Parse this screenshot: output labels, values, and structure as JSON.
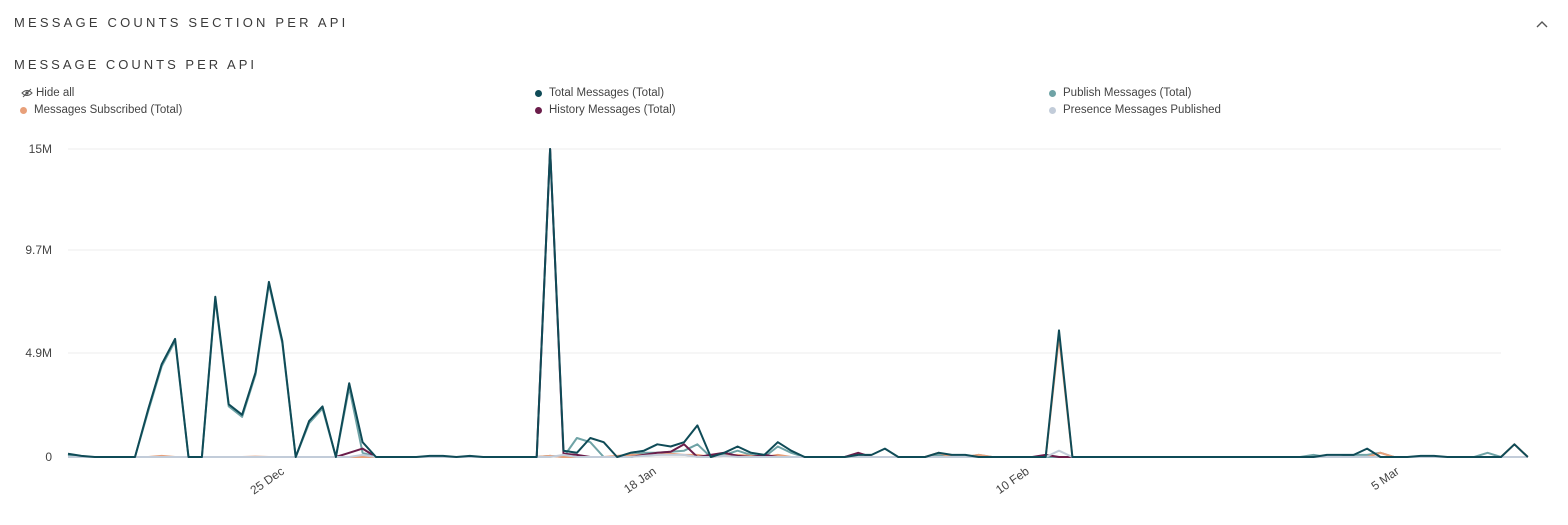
{
  "section": {
    "title": "MESSAGE COUNTS SECTION PER API",
    "collapse_icon": "chevron-up-icon"
  },
  "legend": {
    "hide_all_label": "Hide all",
    "hide_all_icon": "eye-slash-icon"
  },
  "colors": {
    "total": "#0f4b57",
    "publish": "#6fa3a6",
    "subscribed": "#e8a07a",
    "history": "#6b1d4a",
    "presence": "#c2ccd9",
    "grid": "#ececec"
  },
  "chart_data": {
    "type": "line",
    "title": "MESSAGE COUNTS PER API",
    "x_ticks": [
      "25 Dec",
      "18 Jan",
      "10 Feb",
      "5 Mar"
    ],
    "y_ticks": [
      "0",
      "4.9M",
      "9.7M",
      "15M"
    ],
    "ylim": [
      0,
      14600000
    ],
    "grid": true,
    "legend_position": "top",
    "series": [
      {
        "name": "Publish Messages (Total)",
        "color_key": "publish",
        "values": [
          0.1,
          0,
          0,
          0,
          0,
          0,
          2.2,
          4.3,
          5.5,
          0,
          0,
          7.5,
          2.4,
          1.9,
          3.9,
          8.2,
          5.4,
          0,
          1.6,
          2.3,
          0,
          3.3,
          0.2,
          0,
          0,
          0,
          0,
          0,
          0,
          0,
          0,
          0,
          0,
          0,
          0,
          0,
          0.05,
          0,
          0.9,
          0.7,
          0,
          0,
          0.1,
          0.2,
          0.2,
          0.25,
          0.3,
          0.6,
          0,
          0.1,
          0.3,
          0.1,
          0,
          0.5,
          0.2,
          0,
          0,
          0,
          0,
          0,
          0,
          0,
          0,
          0,
          0,
          0.1,
          0,
          0,
          0.1,
          0,
          0,
          0,
          0,
          0,
          0,
          0,
          0,
          0,
          0,
          0,
          0,
          0,
          0,
          0,
          0,
          0,
          0,
          0,
          0,
          0,
          0,
          0,
          0,
          0.1,
          0,
          0,
          0.1,
          0.1,
          0.2,
          0,
          0,
          0,
          0,
          0,
          0,
          0,
          0.2,
          0
        ]
      },
      {
        "name": "Messages Subscribed (Total)",
        "color_key": "subscribed",
        "values": [
          0,
          0,
          0,
          0,
          0,
          0,
          0,
          0.05,
          0,
          0,
          0,
          0,
          0,
          0,
          0.02,
          0,
          0,
          0,
          0,
          0,
          0,
          0,
          0,
          0,
          0,
          0,
          0,
          0,
          0,
          0,
          0,
          0,
          0,
          0,
          0,
          0,
          0.05,
          0,
          0,
          0,
          0,
          0.05,
          0.1,
          0.1,
          0.1,
          0.15,
          0.1,
          0.1,
          0,
          0.05,
          0.1,
          0.05,
          0,
          0.1,
          0,
          0,
          0,
          0,
          0,
          0,
          0,
          0,
          0,
          0,
          0,
          0.2,
          0,
          0,
          0.1,
          0,
          0,
          0,
          0,
          0,
          5.7,
          0,
          0,
          0,
          0,
          0,
          0,
          0,
          0,
          0,
          0,
          0,
          0,
          0,
          0,
          0,
          0,
          0,
          0,
          0,
          0,
          0,
          0,
          0,
          0.2,
          0,
          0,
          0,
          0,
          0,
          0,
          0,
          0,
          0,
          0.6,
          0
        ]
      },
      {
        "name": "History Messages (Total)",
        "color_key": "history",
        "values": [
          0,
          0,
          0,
          0,
          0,
          0,
          0,
          0,
          0,
          0,
          0,
          0,
          0,
          0,
          0,
          0,
          0,
          0,
          0,
          0,
          0,
          0.2,
          0.4,
          0,
          0,
          0,
          0,
          0,
          0,
          0,
          0,
          0,
          0,
          0,
          0,
          0,
          14.6,
          0.15,
          0.1,
          0,
          0,
          0,
          0,
          0.1,
          0.2,
          0.25,
          0.6,
          0,
          0.1,
          0.2,
          0.05,
          0,
          0.1,
          0,
          0,
          0,
          0,
          0,
          0,
          0.2,
          0,
          0,
          0,
          0,
          0,
          0,
          0,
          0,
          0,
          0,
          0,
          0,
          0,
          0.1,
          0,
          0,
          0,
          0,
          0,
          0,
          0,
          0,
          0,
          0,
          0,
          0,
          0,
          0,
          0,
          0,
          0,
          0,
          0,
          0,
          0,
          0,
          0,
          0,
          0,
          0,
          0,
          0,
          0,
          0,
          0,
          0,
          0,
          0,
          0,
          0
        ]
      },
      {
        "name": "Presence Messages Published",
        "color_key": "presence",
        "values": [
          0,
          0,
          0,
          0,
          0,
          0,
          0,
          0,
          0,
          0,
          0,
          0,
          0,
          0,
          0,
          0,
          0,
          0,
          0,
          0,
          0,
          0,
          0.1,
          0,
          0,
          0,
          0,
          0,
          0,
          0,
          0,
          0,
          0,
          0,
          0,
          0,
          0,
          0.1,
          0,
          0,
          0,
          0,
          0,
          0.05,
          0.1,
          0.1,
          0.1,
          0,
          0,
          0.05,
          0,
          0,
          0,
          0,
          0,
          0,
          0,
          0,
          0,
          0,
          0,
          0,
          0,
          0,
          0,
          0,
          0,
          0,
          0,
          0,
          0,
          0,
          0,
          0,
          0.3,
          0,
          0,
          0,
          0,
          0,
          0,
          0,
          0,
          0,
          0,
          0,
          0,
          0,
          0,
          0,
          0,
          0,
          0,
          0,
          0,
          0,
          0,
          0,
          0,
          0,
          0,
          0,
          0,
          0,
          0,
          0,
          0,
          0,
          0,
          0
        ]
      },
      {
        "name": "Total Messages (Total)",
        "color_key": "total",
        "values": [
          0.15,
          0.05,
          0,
          0,
          0,
          0,
          2.3,
          4.4,
          5.6,
          0,
          0,
          7.6,
          2.5,
          2.0,
          4.0,
          8.3,
          5.5,
          0,
          1.7,
          2.4,
          0,
          3.5,
          0.7,
          0,
          0,
          0,
          0,
          0.05,
          0.05,
          0,
          0.05,
          0,
          0,
          0,
          0,
          0,
          14.6,
          0.3,
          0.2,
          0.9,
          0.7,
          0,
          0.2,
          0.3,
          0.6,
          0.5,
          0.7,
          1.5,
          0,
          0.2,
          0.5,
          0.2,
          0.1,
          0.7,
          0.3,
          0,
          0,
          0,
          0,
          0.1,
          0.1,
          0.4,
          0,
          0,
          0,
          0.2,
          0.1,
          0.1,
          0,
          0,
          0,
          0,
          0,
          0,
          6.0,
          0,
          0,
          0,
          0,
          0,
          0,
          0,
          0,
          0,
          0,
          0,
          0,
          0,
          0,
          0,
          0,
          0,
          0,
          0,
          0.1,
          0.1,
          0.1,
          0.4,
          0,
          0,
          0,
          0.05,
          0.05,
          0,
          0,
          0,
          0,
          0,
          0.6,
          0
        ]
      }
    ]
  }
}
